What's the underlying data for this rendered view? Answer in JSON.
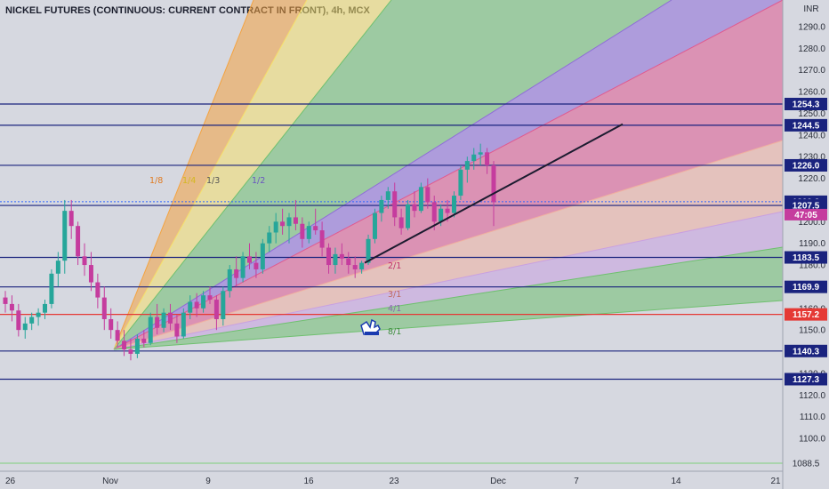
{
  "header": {
    "title": "NICKEL FUTURES (CONTINUOUS: CURRENT CONTRACT IN FRONT), 4h, MCX"
  },
  "axis": {
    "currency": "INR"
  },
  "countdown": "47:05",
  "colors": {
    "background": "#d6d8e0",
    "bull": "#26a69a",
    "bear": "#c53c9e",
    "horizontal_line": "#1a237e",
    "red_line": "#e53935",
    "trendline": "#1b1b2f"
  },
  "chart_data": {
    "type": "candlestick",
    "title": "NICKEL FUTURES (CONTINUOUS: CURRENT CONTRACT IN FRONT), 4h, MCX",
    "ylabel": "INR",
    "ylim": [
      1085,
      1300
    ],
    "y_ticks": [
      1100,
      1110,
      1120,
      1130,
      1140,
      1150,
      1160,
      1170,
      1180,
      1190,
      1200,
      1210,
      1220,
      1230,
      1240,
      1250,
      1260,
      1270,
      1280,
      1290
    ],
    "x_ticks": [
      "26",
      "Nov",
      "9",
      "16",
      "23",
      "Dec",
      "7",
      "14",
      "21"
    ],
    "price_levels": [
      {
        "value": 1254.3,
        "label": "1254.3",
        "style": "line"
      },
      {
        "value": 1244.5,
        "label": "1244.5",
        "style": "line"
      },
      {
        "value": 1226.0,
        "label": "1226.0",
        "style": "line"
      },
      {
        "value": 1209.2,
        "label": "1209.2",
        "style": "current"
      },
      {
        "value": 1207.5,
        "label": "1207.5",
        "style": "line"
      },
      {
        "value": 1183.5,
        "label": "1183.5",
        "style": "line"
      },
      {
        "value": 1169.9,
        "label": "1169.9",
        "style": "line"
      },
      {
        "value": 1157.2,
        "label": "1157.2",
        "style": "red"
      },
      {
        "value": 1140.3,
        "label": "1140.3",
        "style": "line"
      },
      {
        "value": 1127.3,
        "label": "1127.3",
        "style": "line"
      },
      {
        "value": 1088.5,
        "label": "1088.5",
        "style": "green"
      }
    ],
    "gann_fan": {
      "origin": {
        "date": "Nov 1",
        "price": 1138
      },
      "labels": [
        "1/8",
        "1/4",
        "1/3",
        "1/2",
        "2/1",
        "3/1",
        "4/1",
        "8/1"
      ],
      "colors": [
        "#f4a340",
        "#f5e06b",
        "#6fc06f",
        "#8e6bd8",
        "#e05a8f",
        "#f0b0a0",
        "#c9a0e0",
        "#6fc06f"
      ]
    },
    "trendline": {
      "start": {
        "date": "Nov 20",
        "price": 1181
      },
      "end": {
        "date": "Dec 10",
        "price": 1245
      }
    },
    "candles": [
      [
        1165,
        1168,
        1158,
        1162
      ],
      [
        1162,
        1166,
        1154,
        1159
      ],
      [
        1159,
        1162,
        1147,
        1150
      ],
      [
        1150,
        1156,
        1146,
        1153
      ],
      [
        1153,
        1158,
        1150,
        1156
      ],
      [
        1156,
        1160,
        1152,
        1158
      ],
      [
        1158,
        1164,
        1155,
        1162
      ],
      [
        1162,
        1178,
        1160,
        1176
      ],
      [
        1176,
        1186,
        1170,
        1182
      ],
      [
        1182,
        1210,
        1176,
        1205
      ],
      [
        1205,
        1210,
        1192,
        1198
      ],
      [
        1198,
        1200,
        1180,
        1184
      ],
      [
        1184,
        1190,
        1175,
        1180
      ],
      [
        1180,
        1186,
        1168,
        1172
      ],
      [
        1172,
        1176,
        1160,
        1165
      ],
      [
        1165,
        1170,
        1150,
        1155
      ],
      [
        1155,
        1160,
        1146,
        1150
      ],
      [
        1150,
        1154,
        1142,
        1145
      ],
      [
        1145,
        1150,
        1138,
        1141
      ],
      [
        1141,
        1146,
        1136,
        1139
      ],
      [
        1139,
        1148,
        1137,
        1146
      ],
      [
        1146,
        1150,
        1142,
        1144
      ],
      [
        1144,
        1158,
        1143,
        1156
      ],
      [
        1156,
        1162,
        1148,
        1151
      ],
      [
        1151,
        1160,
        1149,
        1158
      ],
      [
        1158,
        1162,
        1150,
        1153
      ],
      [
        1153,
        1157,
        1144,
        1147
      ],
      [
        1147,
        1160,
        1146,
        1158
      ],
      [
        1158,
        1166,
        1155,
        1163
      ],
      [
        1163,
        1167,
        1156,
        1160
      ],
      [
        1160,
        1168,
        1158,
        1166
      ],
      [
        1166,
        1170,
        1162,
        1164
      ],
      [
        1164,
        1166,
        1150,
        1155
      ],
      [
        1155,
        1170,
        1152,
        1168
      ],
      [
        1168,
        1180,
        1165,
        1178
      ],
      [
        1178,
        1184,
        1170,
        1174
      ],
      [
        1174,
        1186,
        1172,
        1184
      ],
      [
        1184,
        1190,
        1178,
        1181
      ],
      [
        1181,
        1186,
        1174,
        1178
      ],
      [
        1178,
        1192,
        1176,
        1190
      ],
      [
        1190,
        1198,
        1186,
        1195
      ],
      [
        1195,
        1204,
        1190,
        1200
      ],
      [
        1200,
        1206,
        1194,
        1198
      ],
      [
        1198,
        1204,
        1190,
        1202
      ],
      [
        1202,
        1210,
        1196,
        1199
      ],
      [
        1199,
        1202,
        1188,
        1192
      ],
      [
        1192,
        1200,
        1190,
        1198
      ],
      [
        1198,
        1206,
        1194,
        1196
      ],
      [
        1196,
        1200,
        1184,
        1188
      ],
      [
        1188,
        1190,
        1176,
        1180
      ],
      [
        1180,
        1188,
        1176,
        1185
      ],
      [
        1185,
        1190,
        1180,
        1183
      ],
      [
        1183,
        1186,
        1176,
        1180
      ],
      [
        1180,
        1184,
        1174,
        1178
      ],
      [
        1178,
        1182,
        1176,
        1181
      ],
      [
        1181,
        1194,
        1180,
        1192
      ],
      [
        1192,
        1206,
        1190,
        1204
      ],
      [
        1204,
        1212,
        1200,
        1210
      ],
      [
        1210,
        1216,
        1206,
        1214
      ],
      [
        1214,
        1218,
        1198,
        1202
      ],
      [
        1202,
        1206,
        1194,
        1197
      ],
      [
        1197,
        1210,
        1196,
        1208
      ],
      [
        1208,
        1214,
        1202,
        1205
      ],
      [
        1205,
        1218,
        1204,
        1216
      ],
      [
        1216,
        1220,
        1206,
        1209
      ],
      [
        1209,
        1212,
        1196,
        1200
      ],
      [
        1200,
        1208,
        1198,
        1206
      ],
      [
        1206,
        1210,
        1200,
        1204
      ],
      [
        1204,
        1214,
        1202,
        1212
      ],
      [
        1212,
        1226,
        1210,
        1224
      ],
      [
        1224,
        1230,
        1218,
        1228
      ],
      [
        1228,
        1234,
        1224,
        1231
      ],
      [
        1231,
        1236,
        1226,
        1232
      ],
      [
        1232,
        1234,
        1222,
        1226
      ],
      [
        1226,
        1228,
        1198,
        1209
      ]
    ]
  }
}
